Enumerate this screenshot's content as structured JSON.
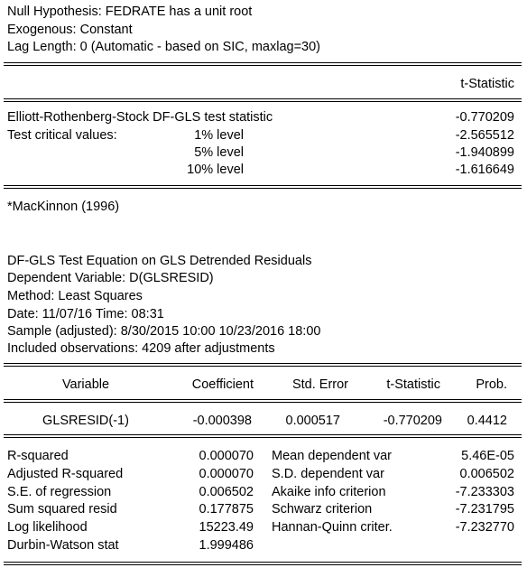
{
  "header": {
    "null_hypothesis": "Null Hypothesis: FEDRATE has a unit root",
    "exogenous": "Exogenous: Constant",
    "lag_length": "Lag Length: 0 (Automatic - based on SIC, maxlag=30)"
  },
  "test": {
    "col_header": "t-Statistic",
    "stat_label": "Elliott-Rothenberg-Stock DF-GLS test statistic",
    "stat_value": "-0.770209",
    "critical_label": "Test critical values:",
    "levels": [
      {
        "label": "1% level",
        "value": "-2.565512"
      },
      {
        "label": "5% level",
        "value": "-1.940899"
      },
      {
        "label": "10% level",
        "value": "-1.616649"
      }
    ],
    "footnote": "*MacKinnon (1996)"
  },
  "equation": {
    "title": "DF-GLS Test Equation on GLS Detrended Residuals",
    "dependent": "Dependent Variable: D(GLSRESID)",
    "method": "Method: Least Squares",
    "date": "Date: 11/07/16   Time: 08:31",
    "sample": "Sample (adjusted): 8/30/2015 10:00 10/23/2016 18:00",
    "observations": "Included observations: 4209 after adjustments"
  },
  "coef_table": {
    "headers": [
      "Variable",
      "Coefficient",
      "Std. Error",
      "t-Statistic",
      "Prob."
    ],
    "rows": [
      [
        "GLSRESID(-1)",
        "-0.000398",
        "0.000517",
        "-0.770209",
        "0.4412"
      ]
    ]
  },
  "stats": [
    {
      "label": "R-squared",
      "value": "0.000070",
      "label2": "Mean dependent var",
      "value2": "5.46E-05"
    },
    {
      "label": "Adjusted R-squared",
      "value": "0.000070",
      "label2": "S.D. dependent var",
      "value2": "0.006502"
    },
    {
      "label": "S.E. of regression",
      "value": "0.006502",
      "label2": "Akaike info criterion",
      "value2": "-7.233303"
    },
    {
      "label": "Sum squared resid",
      "value": "0.177875",
      "label2": "Schwarz criterion",
      "value2": "-7.231795"
    },
    {
      "label": "Log likelihood",
      "value": "15223.49",
      "label2": "Hannan-Quinn criter.",
      "value2": "-7.232770"
    },
    {
      "label": "Durbin-Watson stat",
      "value": "1.999486",
      "label2": "",
      "value2": ""
    }
  ]
}
